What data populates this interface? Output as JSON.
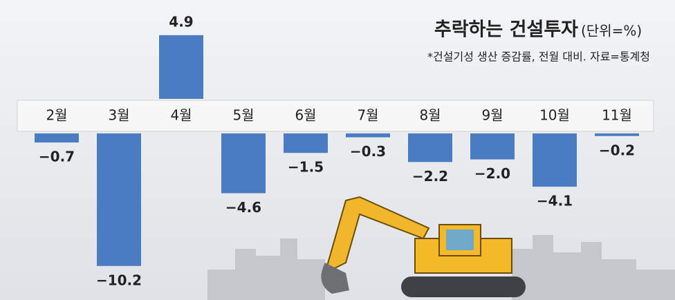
{
  "chart_data": {
    "type": "bar",
    "title": "추락하는 건설투자",
    "unit": "(단위=%)",
    "note": "*건설기성 생산 증감률, 전월 대비. 자료=통계청",
    "categories": [
      "2월",
      "3월",
      "4월",
      "5월",
      "6월",
      "7월",
      "8월",
      "9월",
      "10월",
      "11월"
    ],
    "values": [
      -0.7,
      -10.2,
      4.9,
      -4.6,
      -1.5,
      -0.3,
      -2.2,
      -2.0,
      -4.1,
      -0.2
    ],
    "value_labels": [
      "−0.7",
      "−10.2",
      "4.9",
      "−4.6",
      "−1.5",
      "−0.3",
      "−2.2",
      "−2.0",
      "−4.1",
      "−0.2"
    ],
    "color": "#4a7cc1"
  }
}
